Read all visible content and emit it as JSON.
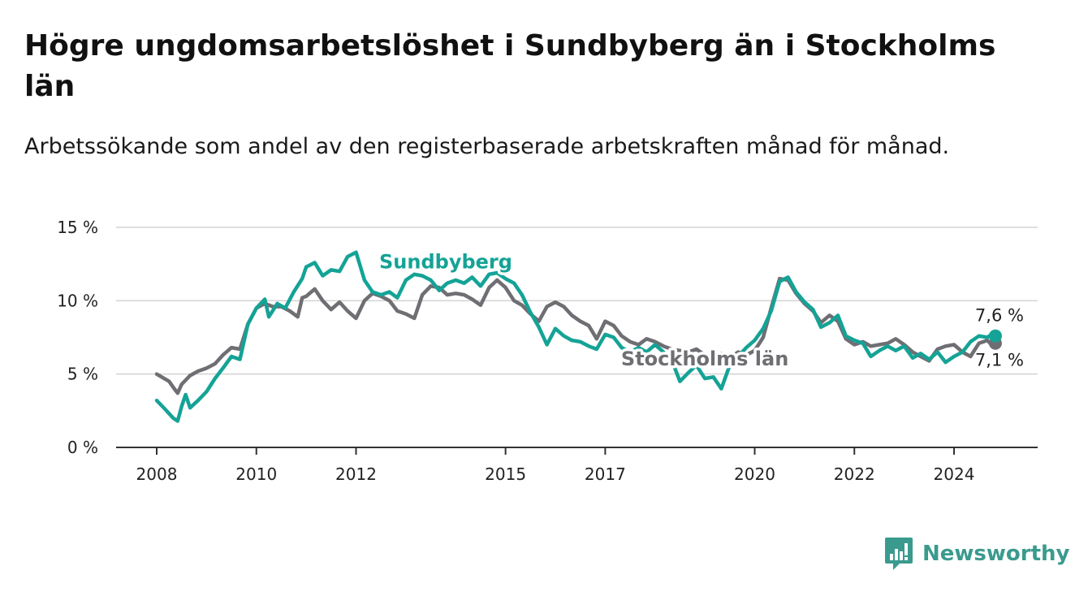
{
  "title": "Högre ungdomsarbetslöshet i Sundbyberg än i Stockholms län",
  "subtitle": "Arbetssökande som andel av den registerbaserade arbetskraften månad för månad.",
  "brand": {
    "name": "Newsworthy",
    "icon": "newsworthy-logo-icon",
    "color": "#3a9a8e"
  },
  "chart_data": {
    "type": "line",
    "title": "Högre ungdomsarbetslöshet i Sundbyberg än i Stockholms län",
    "subtitle": "Arbetssökande som andel av den registerbaserade arbetskraften månad för månad.",
    "xlabel": "",
    "ylabel": "",
    "x_ticks": [
      {
        "label": "2008",
        "value": 2008.0
      },
      {
        "label": "2010",
        "value": 2010.0
      },
      {
        "label": "2012",
        "value": 2012.0
      },
      {
        "label": "2015",
        "value": 2015.0
      },
      {
        "label": "2017",
        "value": 2017.0
      },
      {
        "label": "2020",
        "value": 2020.0
      },
      {
        "label": "2022",
        "value": 2022.0
      },
      {
        "label": "2024",
        "value": 2024.0
      }
    ],
    "xlim": [
      2007.2,
      2025.0
    ],
    "y_ticks": [
      {
        "label": "0 %",
        "value": 0
      },
      {
        "label": "5 %",
        "value": 5
      },
      {
        "label": "10 %",
        "value": 10
      },
      {
        "label": "15 %",
        "value": 15
      }
    ],
    "ylim": [
      0,
      15
    ],
    "grid": true,
    "series": [
      {
        "name": "Stockholms län",
        "color": "#6e6e73",
        "end_label": "7,1 %",
        "points": [
          [
            2008.0,
            5.0
          ],
          [
            2008.25,
            4.5
          ],
          [
            2008.33,
            4.1
          ],
          [
            2008.42,
            3.7
          ],
          [
            2008.5,
            4.3
          ],
          [
            2008.67,
            4.9
          ],
          [
            2008.83,
            5.2
          ],
          [
            2009.0,
            5.4
          ],
          [
            2009.17,
            5.7
          ],
          [
            2009.33,
            6.3
          ],
          [
            2009.5,
            6.8
          ],
          [
            2009.67,
            6.7
          ],
          [
            2009.83,
            8.4
          ],
          [
            2010.0,
            9.5
          ],
          [
            2010.17,
            9.8
          ],
          [
            2010.33,
            9.6
          ],
          [
            2010.5,
            9.6
          ],
          [
            2010.67,
            9.3
          ],
          [
            2010.83,
            8.9
          ],
          [
            2010.92,
            10.2
          ],
          [
            2011.0,
            10.3
          ],
          [
            2011.17,
            10.8
          ],
          [
            2011.33,
            10.0
          ],
          [
            2011.5,
            9.4
          ],
          [
            2011.67,
            9.9
          ],
          [
            2011.83,
            9.3
          ],
          [
            2012.0,
            8.8
          ],
          [
            2012.17,
            10.0
          ],
          [
            2012.33,
            10.5
          ],
          [
            2012.5,
            10.3
          ],
          [
            2012.67,
            10.0
          ],
          [
            2012.83,
            9.3
          ],
          [
            2013.0,
            9.1
          ],
          [
            2013.17,
            8.8
          ],
          [
            2013.33,
            10.4
          ],
          [
            2013.5,
            11.0
          ],
          [
            2013.67,
            10.9
          ],
          [
            2013.83,
            10.4
          ],
          [
            2014.0,
            10.5
          ],
          [
            2014.17,
            10.4
          ],
          [
            2014.33,
            10.1
          ],
          [
            2014.5,
            9.7
          ],
          [
            2014.67,
            10.9
          ],
          [
            2014.83,
            11.4
          ],
          [
            2015.0,
            10.9
          ],
          [
            2015.17,
            10.0
          ],
          [
            2015.33,
            9.7
          ],
          [
            2015.5,
            9.1
          ],
          [
            2015.67,
            8.6
          ],
          [
            2015.83,
            9.6
          ],
          [
            2016.0,
            9.9
          ],
          [
            2016.17,
            9.6
          ],
          [
            2016.33,
            9.0
          ],
          [
            2016.5,
            8.6
          ],
          [
            2016.67,
            8.3
          ],
          [
            2016.83,
            7.4
          ],
          [
            2017.0,
            8.6
          ],
          [
            2017.17,
            8.3
          ],
          [
            2017.33,
            7.6
          ],
          [
            2017.5,
            7.2
          ],
          [
            2017.67,
            7.0
          ],
          [
            2017.83,
            7.4
          ],
          [
            2018.0,
            7.2
          ],
          [
            2018.17,
            6.9
          ],
          [
            2018.33,
            6.7
          ],
          [
            2018.5,
            6.6
          ],
          [
            2018.67,
            6.5
          ],
          [
            2018.83,
            6.7
          ],
          [
            2019.0,
            6.3
          ],
          [
            2019.17,
            6.0
          ],
          [
            2019.33,
            6.4
          ],
          [
            2019.5,
            6.1
          ],
          [
            2019.67,
            6.5
          ],
          [
            2019.83,
            6.3
          ],
          [
            2020.0,
            6.6
          ],
          [
            2020.17,
            7.5
          ],
          [
            2020.33,
            9.5
          ],
          [
            2020.5,
            11.5
          ],
          [
            2020.67,
            11.4
          ],
          [
            2020.83,
            10.5
          ],
          [
            2021.0,
            9.8
          ],
          [
            2021.17,
            9.3
          ],
          [
            2021.33,
            8.5
          ],
          [
            2021.5,
            9.0
          ],
          [
            2021.67,
            8.6
          ],
          [
            2021.83,
            7.4
          ],
          [
            2022.0,
            7.0
          ],
          [
            2022.17,
            7.2
          ],
          [
            2022.33,
            6.9
          ],
          [
            2022.5,
            7.0
          ],
          [
            2022.67,
            7.1
          ],
          [
            2022.83,
            7.4
          ],
          [
            2023.0,
            7.0
          ],
          [
            2023.17,
            6.5
          ],
          [
            2023.33,
            6.2
          ],
          [
            2023.5,
            5.9
          ],
          [
            2023.67,
            6.7
          ],
          [
            2023.83,
            6.9
          ],
          [
            2024.0,
            7.0
          ],
          [
            2024.17,
            6.5
          ],
          [
            2024.33,
            6.2
          ],
          [
            2024.5,
            7.1
          ],
          [
            2024.67,
            7.3
          ],
          [
            2024.75,
            7.0
          ],
          [
            2024.83,
            7.1
          ]
        ]
      },
      {
        "name": "Sundbyberg",
        "color": "#14a396",
        "end_label": "7,6 %",
        "points": [
          [
            2008.0,
            3.2
          ],
          [
            2008.17,
            2.6
          ],
          [
            2008.33,
            2.0
          ],
          [
            2008.42,
            1.8
          ],
          [
            2008.5,
            2.8
          ],
          [
            2008.58,
            3.6
          ],
          [
            2008.67,
            2.7
          ],
          [
            2008.83,
            3.2
          ],
          [
            2009.0,
            3.8
          ],
          [
            2009.17,
            4.7
          ],
          [
            2009.33,
            5.4
          ],
          [
            2009.5,
            6.2
          ],
          [
            2009.67,
            6.0
          ],
          [
            2009.83,
            8.4
          ],
          [
            2010.0,
            9.5
          ],
          [
            2010.17,
            10.1
          ],
          [
            2010.25,
            8.9
          ],
          [
            2010.42,
            9.8
          ],
          [
            2010.58,
            9.5
          ],
          [
            2010.75,
            10.6
          ],
          [
            2010.92,
            11.5
          ],
          [
            2011.0,
            12.3
          ],
          [
            2011.17,
            12.6
          ],
          [
            2011.33,
            11.7
          ],
          [
            2011.5,
            12.1
          ],
          [
            2011.67,
            12.0
          ],
          [
            2011.83,
            13.0
          ],
          [
            2012.0,
            13.3
          ],
          [
            2012.17,
            11.4
          ],
          [
            2012.33,
            10.6
          ],
          [
            2012.5,
            10.4
          ],
          [
            2012.67,
            10.6
          ],
          [
            2012.83,
            10.2
          ],
          [
            2013.0,
            11.4
          ],
          [
            2013.17,
            11.8
          ],
          [
            2013.33,
            11.7
          ],
          [
            2013.5,
            11.4
          ],
          [
            2013.67,
            10.7
          ],
          [
            2013.83,
            11.2
          ],
          [
            2014.0,
            11.4
          ],
          [
            2014.17,
            11.2
          ],
          [
            2014.33,
            11.6
          ],
          [
            2014.5,
            11.0
          ],
          [
            2014.67,
            11.8
          ],
          [
            2014.83,
            11.9
          ],
          [
            2015.0,
            11.5
          ],
          [
            2015.17,
            11.2
          ],
          [
            2015.33,
            10.4
          ],
          [
            2015.5,
            9.2
          ],
          [
            2015.67,
            8.2
          ],
          [
            2015.83,
            7.0
          ],
          [
            2016.0,
            8.1
          ],
          [
            2016.17,
            7.6
          ],
          [
            2016.33,
            7.3
          ],
          [
            2016.5,
            7.2
          ],
          [
            2016.67,
            6.9
          ],
          [
            2016.83,
            6.7
          ],
          [
            2017.0,
            7.7
          ],
          [
            2017.17,
            7.5
          ],
          [
            2017.33,
            6.8
          ],
          [
            2017.5,
            6.5
          ],
          [
            2017.67,
            6.8
          ],
          [
            2017.83,
            6.5
          ],
          [
            2018.0,
            7.0
          ],
          [
            2018.17,
            6.5
          ],
          [
            2018.33,
            6.0
          ],
          [
            2018.5,
            4.5
          ],
          [
            2018.67,
            5.1
          ],
          [
            2018.83,
            5.6
          ],
          [
            2019.0,
            4.7
          ],
          [
            2019.17,
            4.8
          ],
          [
            2019.33,
            4.0
          ],
          [
            2019.5,
            5.6
          ],
          [
            2019.67,
            6.2
          ],
          [
            2019.83,
            6.8
          ],
          [
            2020.0,
            7.3
          ],
          [
            2020.17,
            8.1
          ],
          [
            2020.33,
            9.3
          ],
          [
            2020.5,
            11.3
          ],
          [
            2020.67,
            11.6
          ],
          [
            2020.83,
            10.6
          ],
          [
            2021.0,
            9.9
          ],
          [
            2021.17,
            9.4
          ],
          [
            2021.33,
            8.2
          ],
          [
            2021.5,
            8.5
          ],
          [
            2021.67,
            9.0
          ],
          [
            2021.83,
            7.6
          ],
          [
            2022.0,
            7.3
          ],
          [
            2022.17,
            7.1
          ],
          [
            2022.33,
            6.2
          ],
          [
            2022.5,
            6.6
          ],
          [
            2022.67,
            6.9
          ],
          [
            2022.83,
            6.6
          ],
          [
            2023.0,
            6.9
          ],
          [
            2023.17,
            6.1
          ],
          [
            2023.33,
            6.4
          ],
          [
            2023.5,
            6.0
          ],
          [
            2023.67,
            6.5
          ],
          [
            2023.83,
            5.8
          ],
          [
            2024.0,
            6.2
          ],
          [
            2024.17,
            6.5
          ],
          [
            2024.33,
            7.2
          ],
          [
            2024.5,
            7.6
          ],
          [
            2024.67,
            7.5
          ],
          [
            2024.75,
            7.7
          ],
          [
            2024.83,
            7.6
          ]
        ]
      }
    ],
    "series_labels": [
      {
        "text": "Sundbyberg",
        "series": "Sundbyberg",
        "anchor": [
          2013.8,
          12.2
        ]
      },
      {
        "text": "Stockholms län",
        "series": "Stockholms län",
        "anchor": [
          2019.0,
          5.6
        ]
      }
    ]
  }
}
